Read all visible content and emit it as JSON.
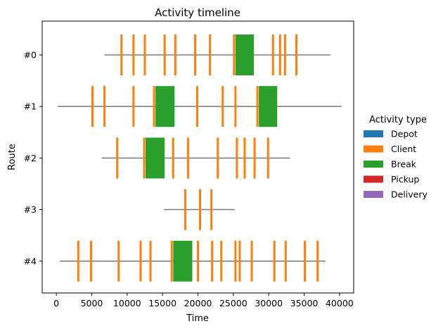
{
  "chart_data": {
    "type": "timeline",
    "title": "Activity timeline",
    "xlabel": "Time",
    "ylabel": "Route",
    "xlim": [
      -2000,
      42000
    ],
    "x_ticks": [
      0,
      5000,
      10000,
      15000,
      20000,
      25000,
      30000,
      35000,
      40000
    ],
    "categories": [
      "#0",
      "#1",
      "#2",
      "#3",
      "#4"
    ],
    "legend": {
      "title": "Activity type",
      "placement": "right",
      "entries": [
        {
          "name": "Depot",
          "color": "#1f77b4"
        },
        {
          "name": "Client",
          "color": "#ff7f0e"
        },
        {
          "name": "Break",
          "color": "#2ca02c"
        },
        {
          "name": "Pickup",
          "color": "#d62728"
        },
        {
          "name": "Delivery",
          "color": "#9467bd"
        }
      ]
    },
    "routes": [
      {
        "name": "#0",
        "start": 6800,
        "end": 38700,
        "client": [
          9200,
          10900,
          12500,
          15300,
          16800,
          19600,
          21700,
          25100,
          30600,
          31600,
          32300,
          33900
        ],
        "breaks": [
          [
            25300,
            27900
          ]
        ]
      },
      {
        "name": "#1",
        "start": 200,
        "end": 40300,
        "client": [
          5100,
          6800,
          10900,
          13800,
          19900,
          23500,
          25300,
          28400
        ],
        "breaks": [
          [
            14000,
            16700
          ],
          [
            28600,
            31200
          ]
        ]
      },
      {
        "name": "#2",
        "start": 6400,
        "end": 33000,
        "client": [
          8600,
          12400,
          16500,
          18600,
          22800,
          25500,
          26600,
          28000,
          29900
        ],
        "breaks": [
          [
            12600,
            15300
          ]
        ]
      },
      {
        "name": "#3",
        "start": 15200,
        "end": 25200,
        "client": [
          18200,
          20300,
          21900
        ],
        "breaks": []
      },
      {
        "name": "#4",
        "start": 500,
        "end": 38000,
        "client": [
          3100,
          4900,
          8800,
          11900,
          13300,
          16300,
          20000,
          22000,
          23300,
          25300,
          25900,
          27600,
          30800,
          32400,
          35100,
          36900
        ],
        "breaks": [
          [
            16500,
            19200
          ]
        ]
      }
    ],
    "colors": {
      "route_line": "#808080",
      "client": "#ff7f0e",
      "break": "#2ca02c"
    }
  }
}
